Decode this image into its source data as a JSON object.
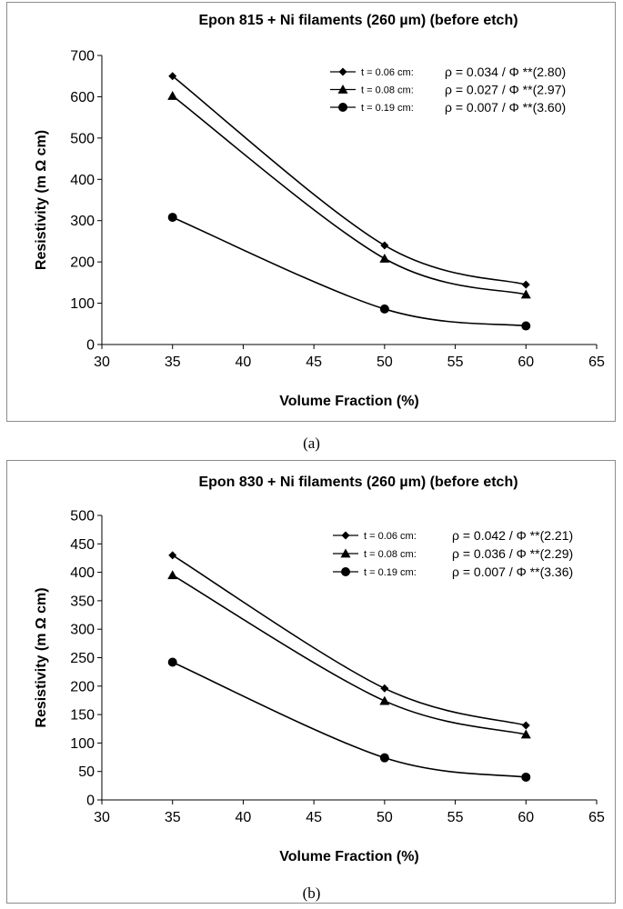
{
  "chart_data": [
    {
      "id": "a",
      "type": "line",
      "caption": "(a)",
      "title": "Epon 815 + Ni filaments (260 µm) (before etch)",
      "xlabel": "Volume Fraction (%)",
      "ylabel": "Resistivity (m Ω cm)",
      "xlim": [
        30,
        65
      ],
      "ylim": [
        0,
        700
      ],
      "xticks": [
        30,
        35,
        40,
        45,
        50,
        55,
        60,
        65
      ],
      "yticks": [
        0,
        100,
        200,
        300,
        400,
        500,
        600,
        700
      ],
      "x": [
        35,
        50,
        60
      ],
      "series": [
        {
          "name": "t = 0.06 cm:",
          "marker": "diamond",
          "values": [
            650,
            240,
            145
          ],
          "equation": "ρ = 0.034 / Φ **(2.80)"
        },
        {
          "name": "t = 0.08 cm:",
          "marker": "triangle",
          "values": [
            602,
            208,
            121
          ],
          "equation": "ρ = 0.027 / Φ **(2.97)"
        },
        {
          "name": "t = 0.19 cm:",
          "marker": "circle",
          "values": [
            308,
            86,
            45
          ],
          "equation": "ρ = 0.007 / Φ **(3.60)"
        }
      ],
      "legend_position": "top-right"
    },
    {
      "id": "b",
      "type": "line",
      "caption": "(b)",
      "title": "Epon 830 + Ni filaments (260 µm) (before etch)",
      "xlabel": "Volume Fraction (%)",
      "ylabel": "Resistivity (m Ω cm)",
      "xlim": [
        30,
        65
      ],
      "ylim": [
        0,
        500
      ],
      "xticks": [
        30,
        35,
        40,
        45,
        50,
        55,
        60,
        65
      ],
      "yticks": [
        0,
        50,
        100,
        150,
        200,
        250,
        300,
        350,
        400,
        450,
        500
      ],
      "x": [
        35,
        50,
        60
      ],
      "series": [
        {
          "name": "t = 0.06 cm:",
          "marker": "diamond",
          "values": [
            430,
            196,
            131
          ],
          "equation": "ρ = 0.042 / Φ **(2.21)"
        },
        {
          "name": "t = 0.08 cm:",
          "marker": "triangle",
          "values": [
            395,
            174,
            115
          ],
          "equation": "ρ = 0.036 / Φ **(2.29)"
        },
        {
          "name": "t = 0.19 cm:",
          "marker": "circle",
          "values": [
            242,
            74,
            40
          ],
          "equation": "ρ = 0.007 / Φ **(3.36)"
        }
      ],
      "legend_position": "top-right"
    }
  ]
}
